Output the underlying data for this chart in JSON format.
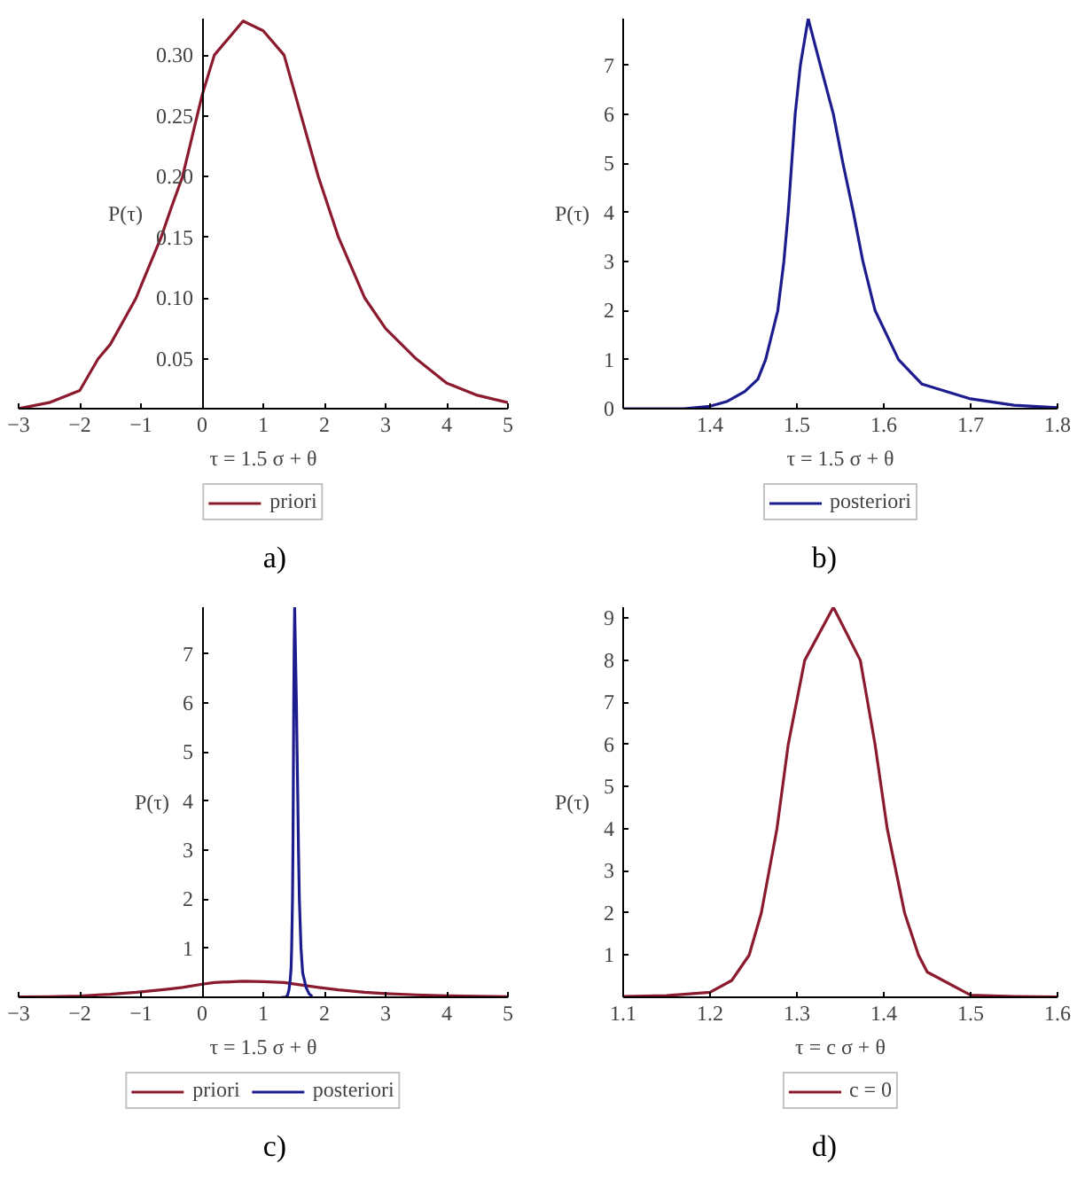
{
  "chart_data": [
    {
      "type": "line",
      "xlabel": "τ = 1.5 σ + θ",
      "ylabel": "P(τ)",
      "annotations": [
        "a)"
      ],
      "legend": "bottom",
      "grid": false,
      "xlim": [
        -3,
        5
      ],
      "ylim": [
        0.009,
        0.33
      ],
      "xticks": [
        {
          "value": -3,
          "label": "−3"
        },
        {
          "value": -2,
          "label": "−2"
        },
        {
          "value": -1,
          "label": "−1"
        },
        0,
        1,
        2,
        3,
        4,
        5
      ],
      "yticks": [
        {
          "value": 0.05,
          "label": "0.05"
        },
        {
          "value": 0.1,
          "label": "0.10"
        },
        {
          "value": 0.15,
          "label": "0.15"
        },
        {
          "value": 0.2,
          "label": "0.20"
        },
        {
          "value": 0.25,
          "label": "0.25"
        },
        {
          "value": 0.3,
          "label": "0.30"
        }
      ],
      "series": [
        {
          "name": "priori",
          "color": "#8b1a2e",
          "x": [
            -3,
            -2.5,
            -2,
            -1.7,
            -1.5,
            -1.08,
            -1,
            -0.67,
            -0.5,
            -0.32,
            0,
            0.2,
            0.67,
            1,
            1.34,
            1.62,
            1.9,
            2.23,
            2.66,
            3,
            3.5,
            4,
            4.5,
            5
          ],
          "values": [
            0.009,
            0.014,
            0.024,
            0.05,
            0.062,
            0.1,
            0.11,
            0.15,
            0.175,
            0.2,
            0.267,
            0.3,
            0.328,
            0.32,
            0.3,
            0.25,
            0.2,
            0.15,
            0.1,
            0.075,
            0.05,
            0.03,
            0.02,
            0.014
          ]
        }
      ]
    },
    {
      "type": "line",
      "xlabel": "τ = 1.5 σ + θ",
      "ylabel": "P(τ)",
      "annotations": [
        "b)"
      ],
      "legend": "bottom",
      "grid": false,
      "xlim": [
        1.3,
        1.8
      ],
      "ylim": [
        0,
        7.95
      ],
      "xticks": [
        1.4,
        1.5,
        1.6,
        1.7,
        1.8
      ],
      "yticks": [
        0,
        1,
        2,
        3,
        4,
        5,
        6,
        7
      ],
      "series": [
        {
          "name": "posteriori",
          "color": "#1c1c8f",
          "x": [
            1.3,
            1.37,
            1.4,
            1.42,
            1.44,
            1.455,
            1.464,
            1.478,
            1.485,
            1.49,
            1.494,
            1.498,
            1.504,
            1.513,
            1.527,
            1.542,
            1.553,
            1.565,
            1.576,
            1.59,
            1.617,
            1.644,
            1.7,
            1.75,
            1.8
          ],
          "values": [
            0,
            0,
            0.05,
            0.15,
            0.35,
            0.6,
            1,
            2,
            3,
            4,
            5,
            6,
            7,
            7.95,
            7,
            6,
            5,
            4,
            3,
            2,
            1,
            0.5,
            0.2,
            0.07,
            0.02
          ]
        }
      ]
    },
    {
      "type": "line",
      "xlabel": "τ = 1.5 σ + θ",
      "ylabel": "P(τ)",
      "annotations": [
        "c)"
      ],
      "legend": "bottom",
      "grid": false,
      "xlim": [
        -3,
        5
      ],
      "ylim": [
        0,
        7.95
      ],
      "xticks": [
        {
          "value": -3,
          "label": "−3"
        },
        {
          "value": -2,
          "label": "−2"
        },
        {
          "value": -1,
          "label": "−1"
        },
        0,
        1,
        2,
        3,
        4,
        5
      ],
      "yticks": [
        1,
        2,
        3,
        4,
        5,
        6,
        7
      ],
      "series": [
        {
          "name": "priori",
          "color": "#8b1a2e",
          "x": [
            -3,
            -2.5,
            -2,
            -1.7,
            -1.5,
            -1.08,
            -1,
            -0.67,
            -0.5,
            -0.32,
            0,
            0.2,
            0.67,
            1,
            1.34,
            1.62,
            1.9,
            2.23,
            2.66,
            3,
            3.5,
            4,
            4.5,
            5
          ],
          "values": [
            0.009,
            0.014,
            0.024,
            0.05,
            0.062,
            0.1,
            0.11,
            0.15,
            0.175,
            0.2,
            0.267,
            0.3,
            0.328,
            0.32,
            0.3,
            0.25,
            0.2,
            0.15,
            0.1,
            0.075,
            0.05,
            0.03,
            0.02,
            0.014
          ]
        },
        {
          "name": "posteriori",
          "color": "#1c1c8f",
          "x": [
            1.3,
            1.37,
            1.4,
            1.42,
            1.44,
            1.455,
            1.464,
            1.478,
            1.485,
            1.49,
            1.494,
            1.498,
            1.504,
            1.513,
            1.527,
            1.542,
            1.553,
            1.565,
            1.576,
            1.59,
            1.617,
            1.644,
            1.7,
            1.75,
            1.8
          ],
          "values": [
            0,
            0,
            0.05,
            0.15,
            0.35,
            0.6,
            1,
            2,
            3,
            4,
            5,
            6,
            7,
            7.95,
            7,
            6,
            5,
            4,
            3,
            2,
            1,
            0.5,
            0.2,
            0.07,
            0.02
          ]
        }
      ]
    },
    {
      "type": "line",
      "xlabel": "τ = c σ + θ",
      "ylabel": "P(τ)",
      "annotations": [
        "d)"
      ],
      "legend": "bottom",
      "grid": false,
      "xlim": [
        1.1,
        1.6
      ],
      "ylim": [
        0,
        9.26
      ],
      "xticks": [
        1.1,
        1.2,
        1.3,
        1.4,
        1.5,
        1.6
      ],
      "yticks": [
        1,
        2,
        3,
        4,
        5,
        6,
        7,
        8,
        9
      ],
      "series": [
        {
          "name": "c = 0",
          "color": "#8b1a2e",
          "x": [
            1.1,
            1.15,
            1.2,
            1.225,
            1.245,
            1.259,
            1.277,
            1.29,
            1.309,
            1.342,
            1.373,
            1.39,
            1.404,
            1.424,
            1.44,
            1.45,
            1.5,
            1.55,
            1.6
          ],
          "values": [
            0.02,
            0.04,
            0.12,
            0.4,
            1,
            2,
            4,
            6,
            8,
            9.26,
            8,
            6,
            4,
            2,
            1,
            0.6,
            0.05,
            0.02,
            0.01
          ]
        }
      ]
    }
  ]
}
